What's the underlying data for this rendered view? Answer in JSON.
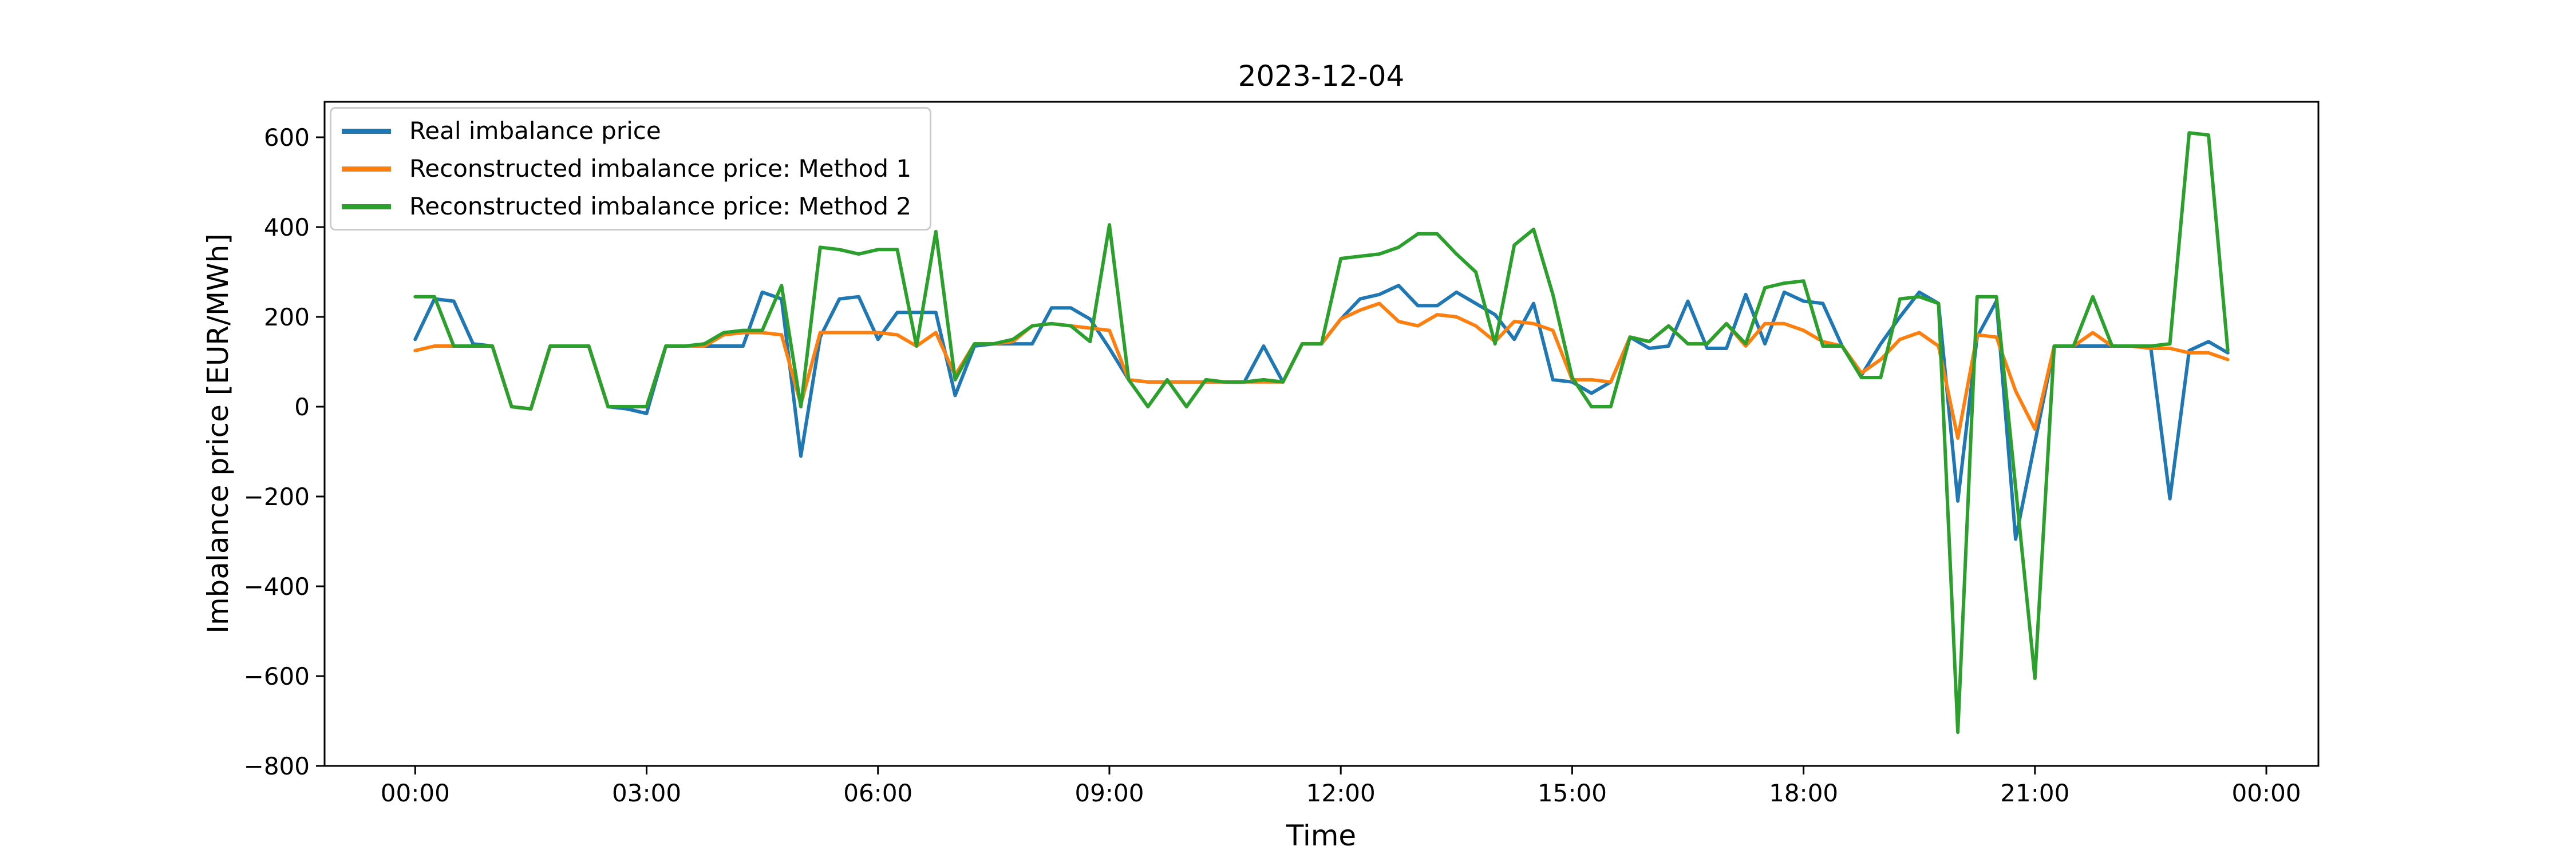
{
  "figure": {
    "title": "2023-12-04"
  },
  "axes": {
    "xlabel": "Time",
    "ylabel": "Imbalance price [EUR/MWh]"
  },
  "legend": {
    "items": [
      {
        "label": "Real imbalance price",
        "color": "#1f77b4"
      },
      {
        "label": "Reconstructed imbalance price: Method 1",
        "color": "#ff7f0e"
      },
      {
        "label": "Reconstructed imbalance price: Method 2",
        "color": "#2ca02c"
      }
    ]
  },
  "chart_data": {
    "type": "line",
    "title": "2023-12-04",
    "xlabel": "Time",
    "ylabel": "Imbalance price [EUR/MWh]",
    "x_unit": "hours since 00:00",
    "x_start": 0,
    "x_step": 0.25,
    "x_end": 23.5,
    "xlim": [
      -1.175,
      24.675
    ],
    "ylim": [
      -800,
      679
    ],
    "xticks": [
      0,
      3,
      6,
      9,
      12,
      15,
      18,
      21,
      24
    ],
    "xtick_labels": [
      "00:00",
      "03:00",
      "06:00",
      "09:00",
      "12:00",
      "15:00",
      "18:00",
      "21:00",
      "00:00"
    ],
    "yticks": [
      600,
      400,
      200,
      0,
      -200,
      -400,
      -600,
      -800
    ],
    "ytick_labels": [
      "600",
      "400",
      "200",
      "0",
      "−200",
      "−400",
      "−600",
      "−800"
    ],
    "grid": false,
    "legend_position": "upper left",
    "series": [
      {
        "name": "Real imbalance price",
        "color": "#1f77b4",
        "values": [
          150,
          240,
          235,
          140,
          135,
          0,
          -5,
          135,
          135,
          135,
          0,
          -5,
          -15,
          135,
          135,
          135,
          135,
          135,
          255,
          240,
          -110,
          155,
          240,
          245,
          150,
          210,
          210,
          210,
          25,
          135,
          140,
          140,
          140,
          220,
          220,
          195,
          130,
          60,
          55,
          55,
          55,
          55,
          55,
          55,
          135,
          55,
          140,
          140,
          195,
          240,
          250,
          270,
          225,
          225,
          255,
          230,
          205,
          150,
          230,
          60,
          55,
          30,
          55,
          155,
          130,
          135,
          235,
          130,
          130,
          250,
          140,
          255,
          235,
          230,
          135,
          70,
          140,
          200,
          255,
          230,
          -210,
          155,
          235,
          -295,
          -80,
          135,
          135,
          135,
          135,
          135,
          135,
          -205,
          125,
          145,
          120
        ]
      },
      {
        "name": "Reconstructed imbalance price: Method 1",
        "color": "#ff7f0e",
        "values": [
          125,
          135,
          135,
          135,
          135,
          0,
          -5,
          135,
          135,
          135,
          0,
          0,
          0,
          135,
          135,
          135,
          160,
          165,
          165,
          160,
          5,
          165,
          165,
          165,
          165,
          160,
          135,
          165,
          70,
          140,
          140,
          145,
          180,
          185,
          180,
          175,
          170,
          60,
          55,
          55,
          55,
          55,
          55,
          55,
          55,
          55,
          140,
          140,
          195,
          215,
          230,
          190,
          180,
          205,
          200,
          180,
          145,
          190,
          185,
          170,
          60,
          60,
          55,
          155,
          145,
          180,
          140,
          140,
          185,
          135,
          185,
          185,
          170,
          145,
          135,
          75,
          105,
          150,
          165,
          135,
          -70,
          160,
          155,
          35,
          -50,
          135,
          135,
          165,
          135,
          135,
          130,
          130,
          120,
          120,
          105
        ]
      },
      {
        "name": "Reconstructed imbalance price: Method 2",
        "color": "#2ca02c",
        "values": [
          245,
          245,
          135,
          135,
          135,
          0,
          -5,
          135,
          135,
          135,
          0,
          0,
          0,
          135,
          135,
          140,
          165,
          170,
          170,
          270,
          0,
          355,
          350,
          340,
          350,
          350,
          135,
          390,
          60,
          140,
          140,
          150,
          180,
          185,
          180,
          145,
          405,
          60,
          0,
          60,
          0,
          60,
          55,
          55,
          60,
          55,
          140,
          140,
          330,
          335,
          340,
          355,
          385,
          385,
          340,
          300,
          140,
          360,
          395,
          250,
          65,
          0,
          0,
          155,
          145,
          180,
          140,
          140,
          185,
          140,
          265,
          275,
          280,
          135,
          135,
          65,
          65,
          240,
          245,
          230,
          -725,
          245,
          245,
          -180,
          -605,
          135,
          135,
          245,
          135,
          135,
          135,
          140,
          610,
          605,
          125
        ]
      }
    ]
  }
}
